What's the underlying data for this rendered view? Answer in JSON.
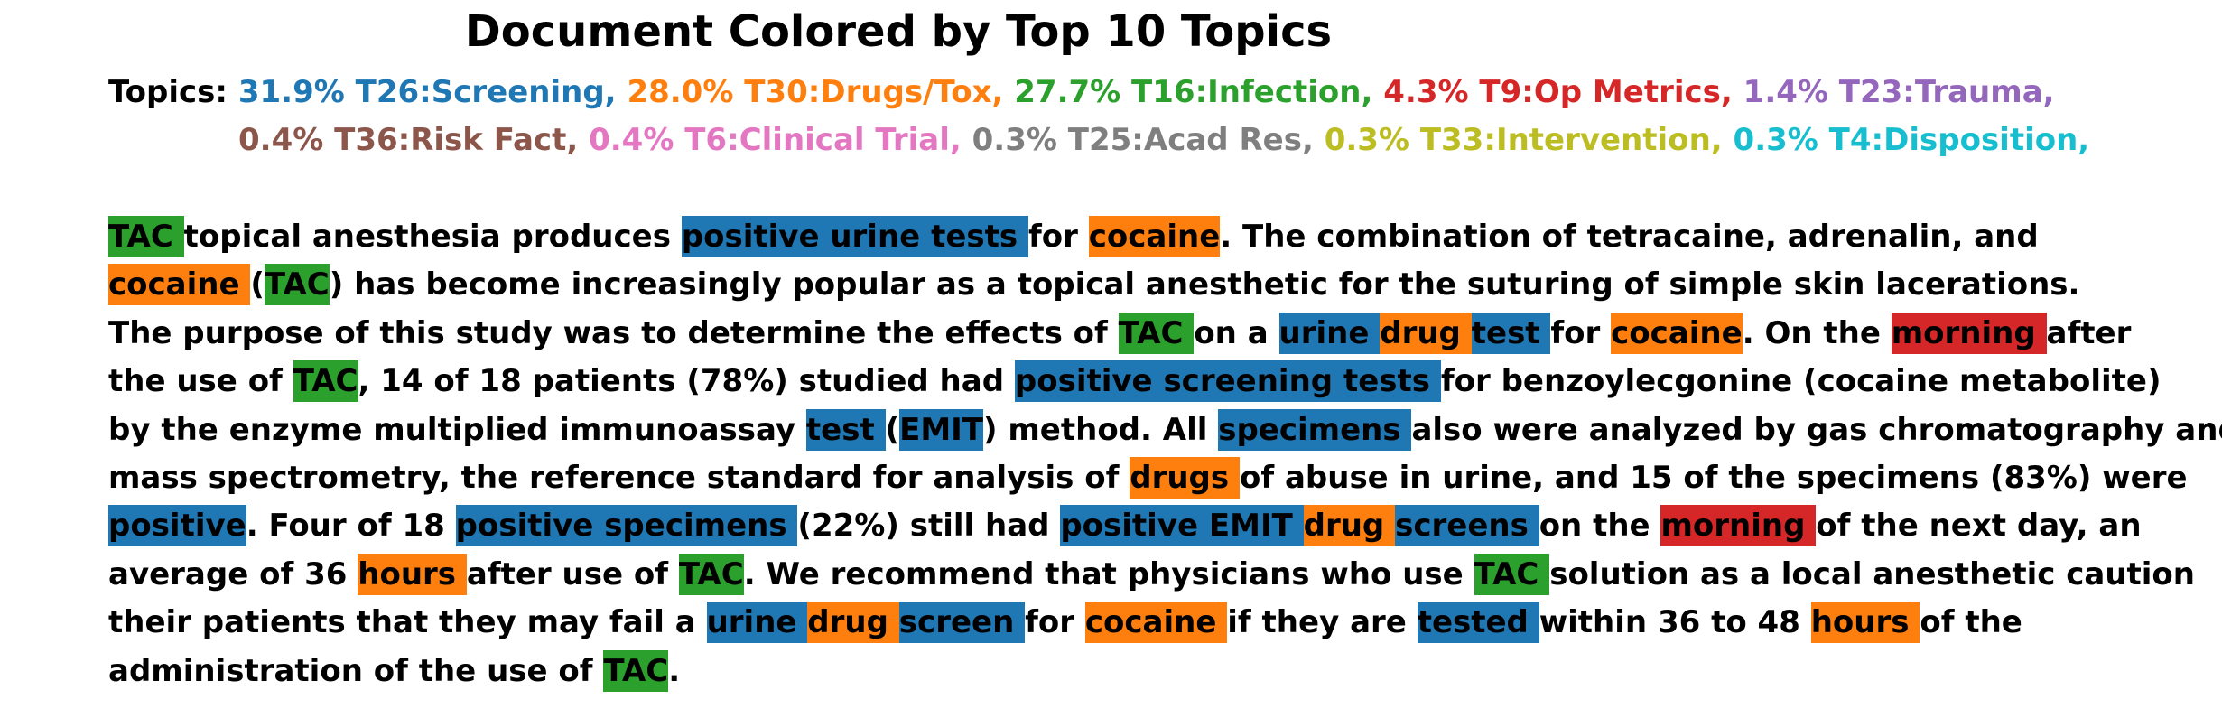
{
  "title": "Document Colored by Top 10 Topics",
  "legend": {
    "prefix": "Topics:",
    "rows": [
      [
        {
          "label": "31.9% T26:Screening,",
          "color": "#1f77b4"
        },
        {
          "label": "28.0% T30:Drugs/Tox,",
          "color": "#ff7f0e"
        },
        {
          "label": "27.7% T16:Infection,",
          "color": "#2ca02c"
        },
        {
          "label": "4.3% T9:Op Metrics,",
          "color": "#d62728"
        },
        {
          "label": "1.4% T23:Trauma,",
          "color": "#9467bd"
        }
      ],
      [
        {
          "label": "0.4% T36:Risk Fact,",
          "color": "#8c564b"
        },
        {
          "label": "0.4% T6:Clinical Trial,",
          "color": "#e377c2"
        },
        {
          "label": "0.3% T25:Acad Res,",
          "color": "#7f7f7f"
        },
        {
          "label": "0.3% T33:Intervention,",
          "color": "#bcbd22"
        },
        {
          "label": "0.3% T4:Disposition,",
          "color": "#17becf"
        }
      ]
    ]
  },
  "document": {
    "lines": [
      [
        [
          "TAC ",
          "#2ca02c"
        ],
        [
          "topical anesthesia produces ",
          null
        ],
        [
          "positive urine tests ",
          "#1f77b4"
        ],
        [
          "for ",
          null
        ],
        [
          "cocaine",
          "#ff7f0e"
        ],
        [
          ". The combination of tetracaine, adrenalin, and",
          null
        ]
      ],
      [
        [
          "cocaine ",
          "#ff7f0e"
        ],
        [
          "(",
          null
        ],
        [
          "TAC",
          "#2ca02c"
        ],
        [
          ") has become increasingly popular as a topical anesthetic for the suturing of simple skin lacerations.",
          null
        ]
      ],
      [
        [
          "The purpose of this study was to determine the effects of ",
          null
        ],
        [
          "TAC ",
          "#2ca02c"
        ],
        [
          "on a ",
          null
        ],
        [
          "urine ",
          "#1f77b4"
        ],
        [
          "drug ",
          "#ff7f0e"
        ],
        [
          "test ",
          "#1f77b4"
        ],
        [
          "for ",
          null
        ],
        [
          "cocaine",
          "#ff7f0e"
        ],
        [
          ". On the ",
          null
        ],
        [
          "morning ",
          "#d62728"
        ],
        [
          "after",
          null
        ]
      ],
      [
        [
          "the use of ",
          null
        ],
        [
          "TAC",
          "#2ca02c"
        ],
        [
          ", 14 of 18 patients (78%) studied had ",
          null
        ],
        [
          "positive screening tests ",
          "#1f77b4"
        ],
        [
          "for benzoylecgonine (cocaine metabolite)",
          null
        ]
      ],
      [
        [
          "by the enzyme multiplied immunoassay ",
          null
        ],
        [
          "test ",
          "#1f77b4"
        ],
        [
          "(",
          null
        ],
        [
          "EMIT",
          "#1f77b4"
        ],
        [
          ") method. All ",
          null
        ],
        [
          "specimens ",
          "#1f77b4"
        ],
        [
          "also were analyzed by gas chromatography and",
          null
        ]
      ],
      [
        [
          "mass spectrometry, the reference standard for analysis of ",
          null
        ],
        [
          "drugs ",
          "#ff7f0e"
        ],
        [
          "of abuse in urine, and 15 of the specimens (83%) were",
          null
        ]
      ],
      [
        [
          "positive",
          "#1f77b4"
        ],
        [
          ". Four of 18 ",
          null
        ],
        [
          "positive specimens ",
          "#1f77b4"
        ],
        [
          "(22%) still had ",
          null
        ],
        [
          "positive EMIT ",
          "#1f77b4"
        ],
        [
          "drug ",
          "#ff7f0e"
        ],
        [
          "screens ",
          "#1f77b4"
        ],
        [
          "on the ",
          null
        ],
        [
          "morning ",
          "#d62728"
        ],
        [
          "of the next day, an",
          null
        ]
      ],
      [
        [
          "average of 36 ",
          null
        ],
        [
          "hours ",
          "#ff7f0e"
        ],
        [
          "after use of ",
          null
        ],
        [
          "TAC",
          "#2ca02c"
        ],
        [
          ". We recommend that physicians who use ",
          null
        ],
        [
          "TAC ",
          "#2ca02c"
        ],
        [
          "solution as a local anesthetic caution",
          null
        ]
      ],
      [
        [
          "their patients that they may fail a ",
          null
        ],
        [
          "urine ",
          "#1f77b4"
        ],
        [
          "drug ",
          "#ff7f0e"
        ],
        [
          "screen ",
          "#1f77b4"
        ],
        [
          "for ",
          null
        ],
        [
          "cocaine ",
          "#ff7f0e"
        ],
        [
          "if they are ",
          null
        ],
        [
          "tested ",
          "#1f77b4"
        ],
        [
          "within 36 to 48 ",
          null
        ],
        [
          "hours ",
          "#ff7f0e"
        ],
        [
          "of the",
          null
        ]
      ],
      [
        [
          "administration of the use of ",
          null
        ],
        [
          "TAC",
          "#2ca02c"
        ],
        [
          ".",
          null
        ]
      ]
    ]
  }
}
